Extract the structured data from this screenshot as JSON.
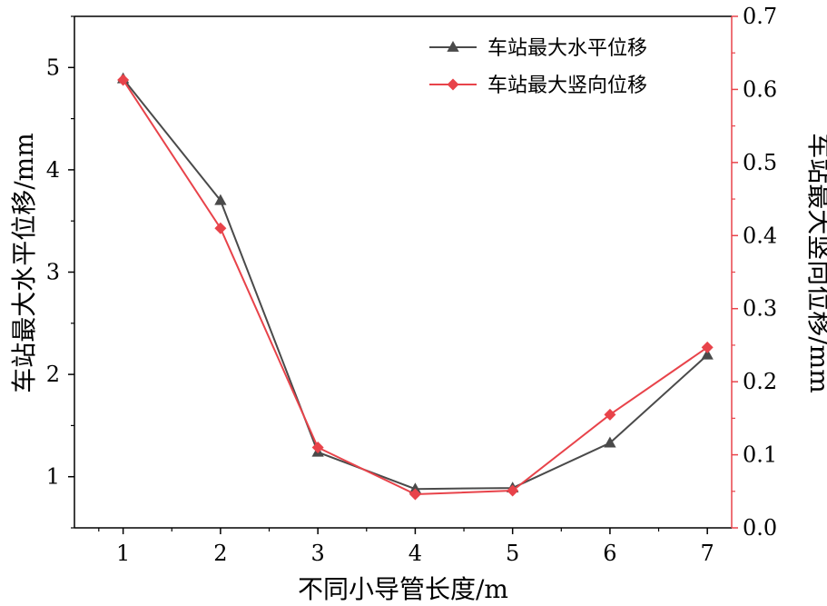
{
  "chart_data": {
    "type": "line",
    "title": "",
    "xlabel": "不同小导管长度/m",
    "ylabel_left": "车站最大水平位移/mm",
    "ylabel_right": "车站最大竖向位移/mm",
    "x": [
      1,
      2,
      3,
      4,
      5,
      6,
      7
    ],
    "x_ticks": [
      "1",
      "2",
      "3",
      "4",
      "5",
      "6",
      "7"
    ],
    "xlim": [
      0.5,
      7.25
    ],
    "ylim_left": [
      0.5,
      5.5
    ],
    "yticks_left": [
      "1",
      "2",
      "3",
      "4",
      "5"
    ],
    "ylim_right": [
      0.0,
      0.7
    ],
    "yticks_right": [
      "0.0",
      "0.1",
      "0.2",
      "0.3",
      "0.4",
      "0.5",
      "0.6",
      "0.7"
    ],
    "legend_position": "top-right",
    "grid": false,
    "series": [
      {
        "name": "车站最大水平位移",
        "axis": "left",
        "marker": "triangle",
        "color": "#4a4a4a",
        "values": [
          4.89,
          3.7,
          1.24,
          0.88,
          0.89,
          1.33,
          2.19
        ]
      },
      {
        "name": "车站最大竖向位移",
        "axis": "right",
        "marker": "diamond",
        "color": "#e8434a",
        "values": [
          0.613,
          0.41,
          0.11,
          0.046,
          0.051,
          0.155,
          0.247
        ]
      }
    ],
    "colors": {
      "left_axis": "#000000",
      "right_axis": "#e8434a"
    }
  }
}
